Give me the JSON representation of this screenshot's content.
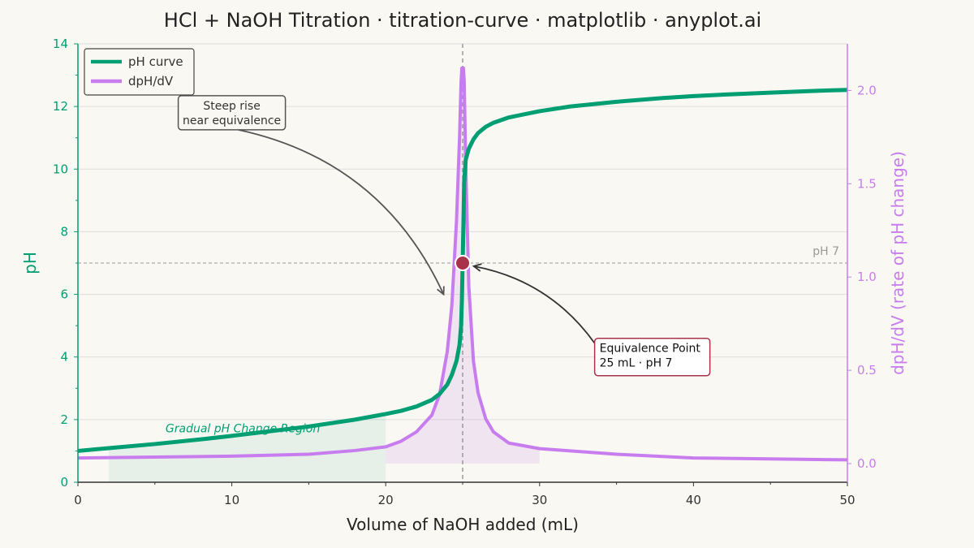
{
  "chart_data": {
    "type": "line",
    "title": "HCl + NaOH Titration · titration-curve · matplotlib · anyplot.ai",
    "xlabel": "Volume of NaOH added (mL)",
    "ylabel": "pH",
    "y2label": "dpH/dV (rate of pH change)",
    "xlim": [
      0,
      50
    ],
    "ylim": [
      0,
      14
    ],
    "y2lim": [
      -0.1,
      2.25
    ],
    "x_ticks": [
      0,
      10,
      20,
      30,
      40,
      50
    ],
    "x_tick_labels": [
      "0",
      "10",
      "20",
      "30",
      "40",
      "50"
    ],
    "y_ticks": [
      0,
      2,
      4,
      6,
      8,
      10,
      12,
      14
    ],
    "y_tick_labels": [
      "0",
      "2",
      "4",
      "6",
      "8",
      "10",
      "12",
      "14"
    ],
    "y2_ticks": [
      0,
      0.5,
      1,
      1.5,
      2
    ],
    "y2_tick_labels": [
      "0.0",
      "0.5",
      "1.0",
      "1.5",
      "2.0"
    ],
    "grid": "horizontal",
    "legend_position": "top-left",
    "series": [
      {
        "name": "pH curve",
        "axis": "left",
        "color": "#009e73",
        "x": [
          0,
          2,
          5,
          8,
          10,
          12,
          15,
          18,
          20,
          21,
          22,
          23,
          23.5,
          24,
          24.3,
          24.6,
          24.8,
          24.9,
          24.95,
          25,
          25.05,
          25.1,
          25.2,
          25.4,
          25.7,
          26,
          26.5,
          27,
          28,
          30,
          32,
          35,
          38,
          40,
          42,
          45,
          48,
          50
        ],
        "y": [
          1.0,
          1.09,
          1.22,
          1.37,
          1.48,
          1.6,
          1.78,
          2.0,
          2.18,
          2.28,
          2.42,
          2.63,
          2.82,
          3.12,
          3.43,
          3.87,
          4.4,
          5.0,
          5.8,
          7.0,
          8.2,
          9.6,
          10.3,
          10.65,
          10.95,
          11.15,
          11.35,
          11.48,
          11.65,
          11.85,
          12.0,
          12.15,
          12.27,
          12.33,
          12.38,
          12.44,
          12.5,
          12.53
        ]
      },
      {
        "name": "dpH/dV",
        "axis": "right",
        "color": "#c77dee",
        "x": [
          0,
          5,
          10,
          15,
          18,
          20,
          21,
          22,
          23,
          23.5,
          24,
          24.3,
          24.6,
          24.8,
          24.9,
          24.95,
          25,
          25.05,
          25.1,
          25.2,
          25.4,
          25.7,
          26,
          26.5,
          27,
          28,
          30,
          35,
          40,
          45,
          50
        ],
        "y": [
          0.03,
          0.035,
          0.04,
          0.05,
          0.07,
          0.09,
          0.12,
          0.17,
          0.26,
          0.37,
          0.6,
          0.85,
          1.3,
          1.75,
          2.05,
          2.12,
          2.12,
          2.12,
          2.05,
          1.6,
          0.95,
          0.55,
          0.38,
          0.24,
          0.17,
          0.11,
          0.08,
          0.05,
          0.03,
          0.025,
          0.02
        ]
      }
    ],
    "reference_lines": [
      {
        "type": "horizontal",
        "value": 7,
        "label": "pH 7",
        "color": "#aaaaaa"
      },
      {
        "type": "vertical",
        "value": 25,
        "color": "#999999"
      }
    ],
    "equivalence_point": {
      "x": 25,
      "y": 7,
      "color": "#a8324a"
    },
    "shaded_regions": [
      {
        "axis": "left",
        "x_start": 2,
        "x_end": 20,
        "color": "#009e73",
        "label": "Gradual pH Change Region"
      },
      {
        "axis": "right",
        "x_start": 20,
        "x_end": 30,
        "color": "#c77dee"
      }
    ],
    "annotations": [
      {
        "text_lines": [
          "Steep rise",
          "near equivalence"
        ],
        "target_x": 24.5,
        "target_y": 6.0,
        "text_x": 10,
        "text_y": 11.8
      },
      {
        "text_lines": [
          "Equivalence Point",
          "25 mL · pH 7"
        ],
        "target_x": 25.3,
        "target_y": 6.9,
        "text_x": 34,
        "text_y": 4.0
      }
    ]
  }
}
